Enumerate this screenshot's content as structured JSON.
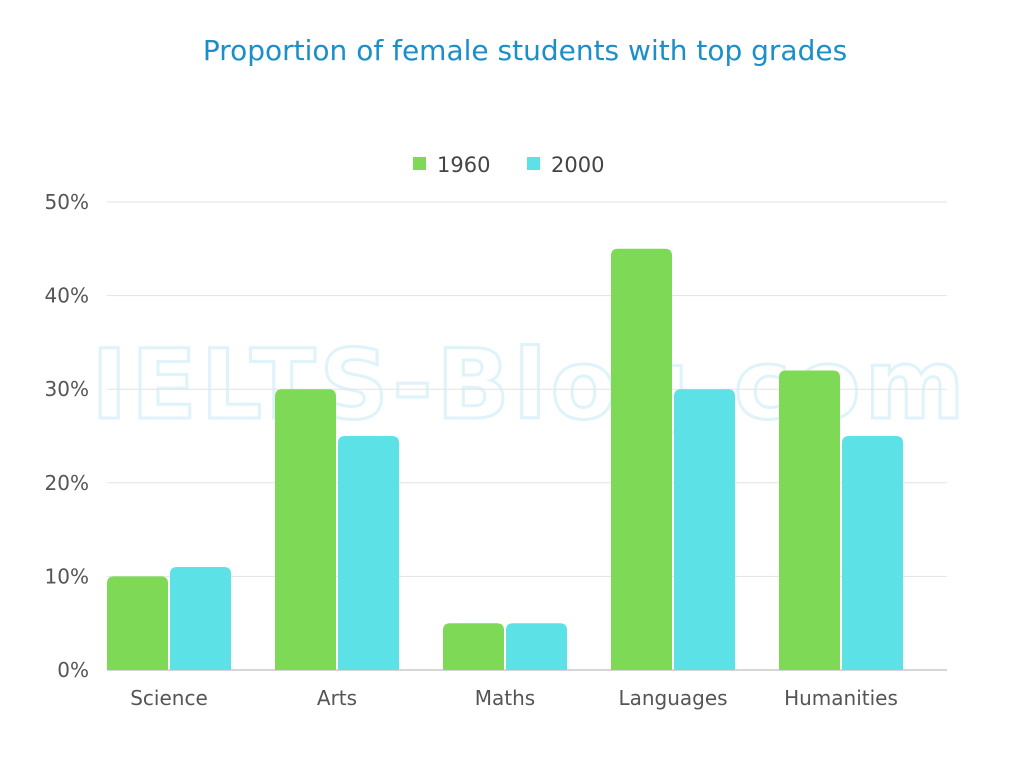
{
  "chart_data": {
    "type": "bar",
    "title": "Proportion of female students with top grades",
    "categories": [
      "Science",
      "Arts",
      "Maths",
      "Languages",
      "Humanities"
    ],
    "series": [
      {
        "name": "1960",
        "color": "#7ed957",
        "values": [
          10,
          30,
          5,
          45,
          32
        ]
      },
      {
        "name": "2000",
        "color": "#5ce1e6",
        "values": [
          11,
          25,
          5,
          30,
          25
        ]
      }
    ],
    "y_ticks": [
      "0%",
      "10%",
      "20%",
      "30%",
      "40%",
      "50%"
    ],
    "ylim": [
      0,
      50
    ],
    "xlabel": "",
    "ylabel": "",
    "grid": true,
    "legend_position": "top-center",
    "title_color": "#1a8fc9",
    "watermark": "IELTS-Blog.com"
  }
}
